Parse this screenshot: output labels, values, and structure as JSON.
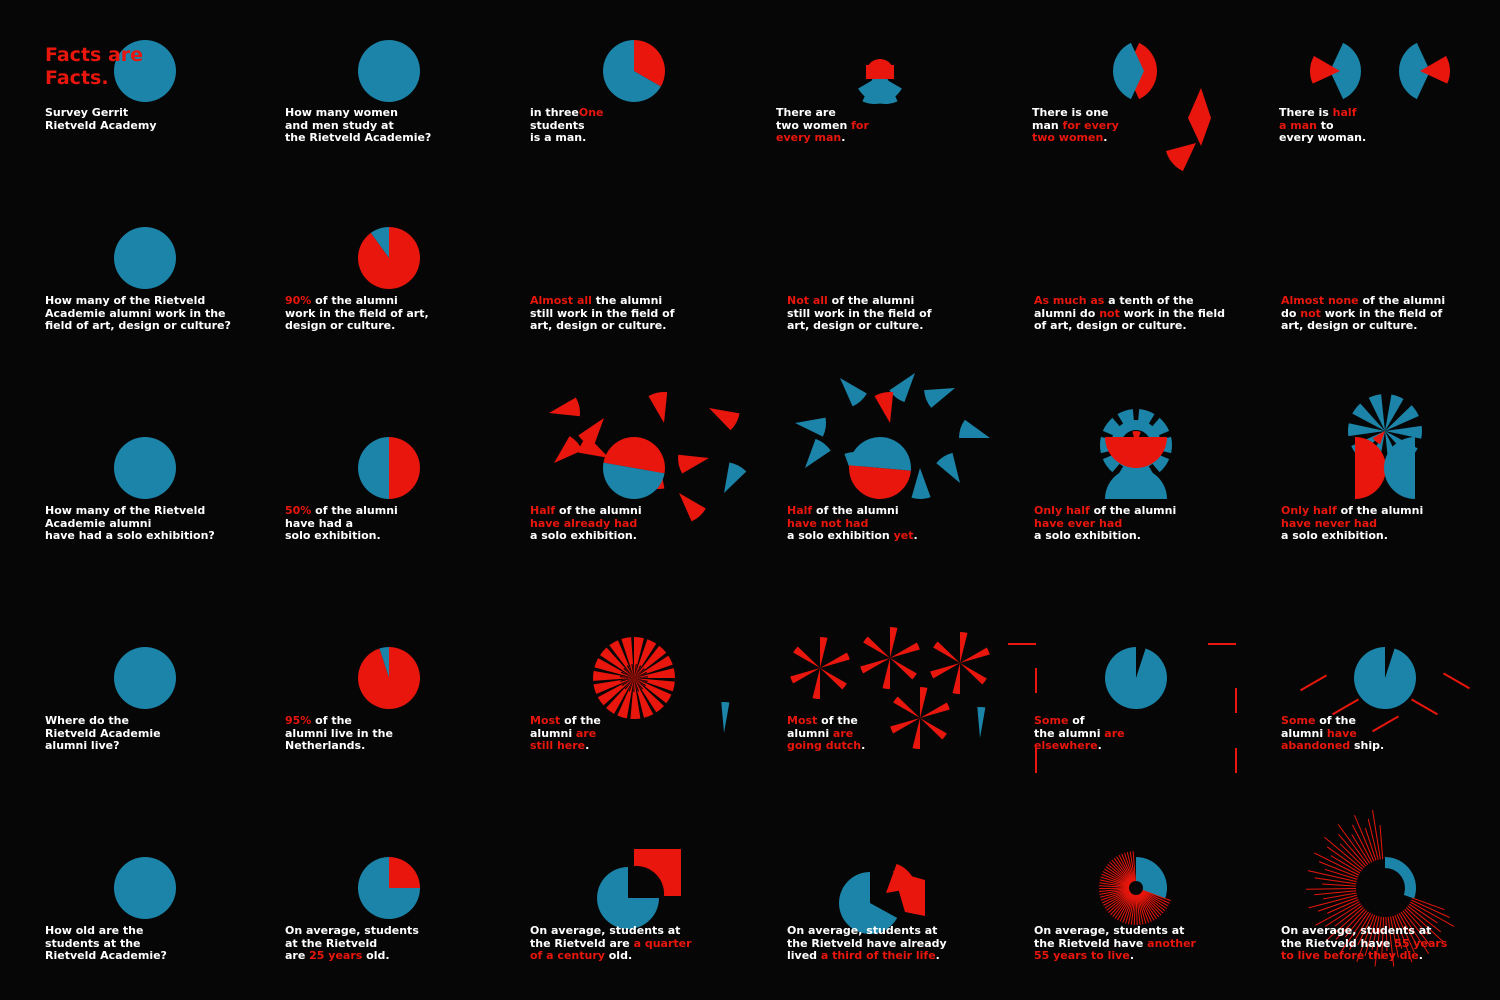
{
  "poster": {
    "title_lines": [
      "Facts are",
      "Facts."
    ],
    "colors": {
      "blue": "#1b84a8",
      "red": "#e8160c",
      "background": "#060606",
      "text": "#ffffff"
    }
  },
  "chart_data": [
    {
      "type": "pie",
      "name": "intro-circle",
      "values": [
        {
          "label": "all",
          "value": 100,
          "color": "blue"
        }
      ],
      "caption": [
        {
          "t": "Survey Gerrit"
        },
        {
          "t": "Rietveld Academy"
        }
      ]
    },
    {
      "type": "pie",
      "name": "q-gender",
      "values": [
        {
          "label": "all",
          "value": 100,
          "color": "blue"
        }
      ],
      "caption": [
        {
          "t": "How many women"
        },
        {
          "t": "and men study at"
        },
        {
          "t": "the Rietveld Academie?"
        }
      ]
    },
    {
      "type": "pie",
      "name": "one-in-three",
      "values": [
        {
          "label": "men",
          "value": 33.3,
          "color": "red"
        },
        {
          "label": "women",
          "value": 66.7,
          "color": "blue"
        }
      ],
      "caption": [
        {
          "r": "One",
          "t": " in three"
        },
        {
          "t": "students"
        },
        {
          "t": "is a man."
        }
      ]
    },
    {
      "type": "pie",
      "name": "two-women-per-man",
      "values": [
        {
          "label": "men",
          "value": 33.3,
          "color": "red"
        },
        {
          "label": "women",
          "value": 66.7,
          "color": "blue"
        }
      ],
      "caption": [
        {
          "t": "There are"
        },
        {
          "t": "two women ",
          "r": "for"
        },
        {
          "r": "every man",
          "t2": "."
        }
      ]
    },
    {
      "type": "pie",
      "name": "one-man-per-two-women",
      "values": [
        {
          "label": "men",
          "value": 33.3,
          "color": "red"
        },
        {
          "label": "women",
          "value": 66.7,
          "color": "blue"
        }
      ],
      "caption": [
        {
          "t": "There is one"
        },
        {
          "t": "man ",
          "r": "for every"
        },
        {
          "r": "two women",
          "t2": "."
        }
      ]
    },
    {
      "type": "pie",
      "name": "half-man-per-woman",
      "values": [
        {
          "label": "men",
          "value": 33.3,
          "color": "red"
        },
        {
          "label": "women",
          "value": 66.7,
          "color": "blue"
        }
      ],
      "caption": [
        {
          "t": "There is ",
          "r": "half"
        },
        {
          "r": "a man",
          "t2": " to"
        },
        {
          "t": "every woman."
        }
      ]
    },
    {
      "type": "pie",
      "name": "q-field",
      "values": [
        {
          "label": "all",
          "value": 100,
          "color": "blue"
        }
      ],
      "caption": [
        {
          "t": "How many of the Rietveld"
        },
        {
          "t": "Academie alumni work in the"
        },
        {
          "t": "field of art, design or culture?"
        }
      ]
    },
    {
      "type": "pie",
      "name": "ninety-percent",
      "values": [
        {
          "label": "in field",
          "value": 90,
          "color": "red"
        },
        {
          "label": "outside field",
          "value": 10,
          "color": "blue"
        }
      ],
      "caption": [
        {
          "r": "90%",
          "t2": " of the alumni"
        },
        {
          "t": "work in the field of art,"
        },
        {
          "t": "design or culture."
        }
      ]
    },
    {
      "type": "pie",
      "name": "almost-all",
      "values": [
        {
          "label": "in field",
          "value": 90,
          "color": "red"
        },
        {
          "label": "outside field",
          "value": 10,
          "color": "blue"
        }
      ],
      "caption": [
        {
          "r": "Almost all",
          "t2": " the alumni"
        },
        {
          "t": "still work in the field of"
        },
        {
          "t": "art, design or culture."
        }
      ]
    },
    {
      "type": "pie",
      "name": "not-all",
      "values": [
        {
          "label": "in field",
          "value": 90,
          "color": "blue"
        },
        {
          "label": "outside field",
          "value": 10,
          "color": "red"
        }
      ],
      "caption": [
        {
          "r": "Not all",
          "t2": " of the alumni"
        },
        {
          "t": "still work in the field of"
        },
        {
          "t": "art, design or culture."
        }
      ]
    },
    {
      "type": "pie",
      "name": "tenth",
      "values": [
        {
          "label": "in field",
          "value": 90,
          "color": "blue"
        },
        {
          "label": "outside field",
          "value": 10,
          "color": "red"
        }
      ],
      "caption": [
        {
          "r": "As much as",
          "t2": " a tenth of the"
        },
        {
          "t": "alumni do ",
          "r": "not",
          "t2": " work in the field"
        },
        {
          "t": "of art, design or culture."
        }
      ]
    },
    {
      "type": "pie",
      "name": "almost-none",
      "values": [
        {
          "label": "in field",
          "value": 90,
          "color": "blue"
        },
        {
          "label": "outside field",
          "value": 10,
          "color": "red"
        }
      ],
      "caption": [
        {
          "r": "Almost none",
          "t2": " of the alumni"
        },
        {
          "t": "do ",
          "r": "not",
          "t2": " work in the field of"
        },
        {
          "t": "art, design or culture."
        }
      ]
    },
    {
      "type": "pie",
      "name": "q-solo",
      "values": [
        {
          "label": "all",
          "value": 100,
          "color": "blue"
        }
      ],
      "caption": [
        {
          "t": "How many of the Rietveld"
        },
        {
          "t": "Academie alumni"
        },
        {
          "t": "have had a solo exhibition?"
        }
      ]
    },
    {
      "type": "pie",
      "name": "fifty-percent",
      "values": [
        {
          "label": "had solo",
          "value": 50,
          "color": "red"
        },
        {
          "label": "no solo",
          "value": 50,
          "color": "blue"
        }
      ],
      "caption": [
        {
          "r": "50%",
          "t2": " of the alumni"
        },
        {
          "t": "have had a"
        },
        {
          "t": "solo exhibition."
        }
      ]
    },
    {
      "type": "pie",
      "name": "half-already",
      "values": [
        {
          "label": "had solo",
          "value": 50,
          "color": "red"
        },
        {
          "label": "no solo",
          "value": 50,
          "color": "blue"
        }
      ],
      "caption": [
        {
          "r": "Half",
          "t2": " of the alumni"
        },
        {
          "r": "have already had"
        },
        {
          "t": "a solo exhibition."
        }
      ]
    },
    {
      "type": "pie",
      "name": "half-not-yet",
      "values": [
        {
          "label": "no solo",
          "value": 50,
          "color": "red"
        },
        {
          "label": "had solo",
          "value": 50,
          "color": "blue"
        }
      ],
      "caption": [
        {
          "r": "Half",
          "t2": " of the alumni"
        },
        {
          "r": "have not had"
        },
        {
          "t": "a solo exhibition ",
          "r": "yet",
          "t2": "."
        }
      ]
    },
    {
      "type": "pie",
      "name": "only-half-ever",
      "values": [
        {
          "label": "had solo",
          "value": 50,
          "color": "red"
        },
        {
          "label": "no solo",
          "value": 50,
          "color": "blue"
        }
      ],
      "caption": [
        {
          "r": "Only half",
          "t2": " of the alumni"
        },
        {
          "r": "have ever had"
        },
        {
          "t": "a solo exhibition."
        }
      ]
    },
    {
      "type": "pie",
      "name": "only-half-never",
      "values": [
        {
          "label": "no solo",
          "value": 50,
          "color": "red"
        },
        {
          "label": "had solo",
          "value": 50,
          "color": "blue"
        }
      ],
      "caption": [
        {
          "r": "Only half",
          "t2": " of the alumni"
        },
        {
          "r": "have never had"
        },
        {
          "t": "a solo exhibition."
        }
      ]
    },
    {
      "type": "pie",
      "name": "q-live",
      "values": [
        {
          "label": "all",
          "value": 100,
          "color": "blue"
        }
      ],
      "caption": [
        {
          "t": "Where do the"
        },
        {
          "t": "Rietveld Academie"
        },
        {
          "t": "alumni live?"
        }
      ]
    },
    {
      "type": "pie",
      "name": "ninety-five-percent",
      "values": [
        {
          "label": "Netherlands",
          "value": 95,
          "color": "red"
        },
        {
          "label": "abroad",
          "value": 5,
          "color": "blue"
        }
      ],
      "caption": [
        {
          "r": "95%",
          "t2": " of the"
        },
        {
          "t": "alumni live in the"
        },
        {
          "t": "Netherlands."
        }
      ]
    },
    {
      "type": "pie",
      "name": "most-still-here",
      "values": [
        {
          "label": "Netherlands",
          "value": 95,
          "color": "red"
        },
        {
          "label": "abroad",
          "value": 5,
          "color": "blue"
        }
      ],
      "caption": [
        {
          "r": "Most",
          "t2": " of the"
        },
        {
          "t": "alumni ",
          "r": "are"
        },
        {
          "r": "still here",
          "t2": "."
        }
      ]
    },
    {
      "type": "pie",
      "name": "most-going-dutch",
      "values": [
        {
          "label": "Netherlands",
          "value": 95,
          "color": "red"
        },
        {
          "label": "abroad",
          "value": 5,
          "color": "blue"
        }
      ],
      "caption": [
        {
          "r": "Most",
          "t2": " of the"
        },
        {
          "t": "alumni ",
          "r": "are"
        },
        {
          "r": "going dutch",
          "t2": "."
        }
      ]
    },
    {
      "type": "pie",
      "name": "some-elsewhere",
      "values": [
        {
          "label": "Netherlands",
          "value": 95,
          "color": "blue"
        },
        {
          "label": "abroad",
          "value": 5,
          "color": "red"
        }
      ],
      "caption": [
        {
          "r": "Some",
          "t2": " of"
        },
        {
          "t": "the alumni ",
          "r": "are"
        },
        {
          "r": "elsewhere",
          "t2": "."
        }
      ]
    },
    {
      "type": "pie",
      "name": "some-abandoned",
      "values": [
        {
          "label": "Netherlands",
          "value": 95,
          "color": "blue"
        },
        {
          "label": "abroad",
          "value": 5,
          "color": "red"
        }
      ],
      "caption": [
        {
          "r": "Some",
          "t2": " of the"
        },
        {
          "t": "alumni ",
          "r": "have"
        },
        {
          "r": "abandoned",
          "t2": " ship."
        }
      ]
    },
    {
      "type": "pie",
      "name": "q-age",
      "values": [
        {
          "label": "all",
          "value": 100,
          "color": "blue"
        }
      ],
      "caption": [
        {
          "t": "How old are the"
        },
        {
          "t": "students at the"
        },
        {
          "t": "Rietveld Academie?"
        }
      ]
    },
    {
      "type": "pie",
      "name": "twenty-five-years",
      "values": [
        {
          "label": "age",
          "value": 25,
          "color": "red"
        },
        {
          "label": "rest",
          "value": 75,
          "color": "blue"
        }
      ],
      "caption": [
        {
          "t": "On average, students"
        },
        {
          "t": "at the Rietveld"
        },
        {
          "t": "are ",
          "r": "25 years",
          "t2": " old."
        }
      ]
    },
    {
      "type": "pie",
      "name": "quarter-century",
      "values": [
        {
          "label": "age",
          "value": 25,
          "color": "red"
        },
        {
          "label": "rest",
          "value": 75,
          "color": "blue"
        }
      ],
      "caption": [
        {
          "t": "On average, students at"
        },
        {
          "t": "the Rietveld are ",
          "r": "a quarter"
        },
        {
          "r": "of a century",
          "t2": " old."
        }
      ]
    },
    {
      "type": "pie",
      "name": "third-of-life",
      "values": [
        {
          "label": "lived",
          "value": 33,
          "color": "red"
        },
        {
          "label": "remaining",
          "value": 67,
          "color": "blue"
        }
      ],
      "caption": [
        {
          "t": "On average, students at"
        },
        {
          "t": "the Rietveld have already"
        },
        {
          "t": "lived ",
          "r": "a third of their life",
          "t2": "."
        }
      ]
    },
    {
      "type": "pie",
      "name": "another-55",
      "values": [
        {
          "label": "lived",
          "value": 25,
          "color": "blue"
        },
        {
          "label": "remaining",
          "value": 55,
          "color": "red"
        }
      ],
      "caption": [
        {
          "t": "On average, students at"
        },
        {
          "t": "the Rietveld have ",
          "r": "another"
        },
        {
          "r": "55 years to live",
          "t2": "."
        }
      ]
    },
    {
      "type": "pie",
      "name": "before-they-die",
      "values": [
        {
          "label": "lived",
          "value": 25,
          "color": "blue"
        },
        {
          "label": "remaining",
          "value": 55,
          "color": "red"
        }
      ],
      "caption": [
        {
          "t": "On average, students at"
        },
        {
          "t": "the Rietveld have ",
          "r": "55 years"
        },
        {
          "r": "to live before they die",
          "t2": "."
        }
      ]
    }
  ]
}
